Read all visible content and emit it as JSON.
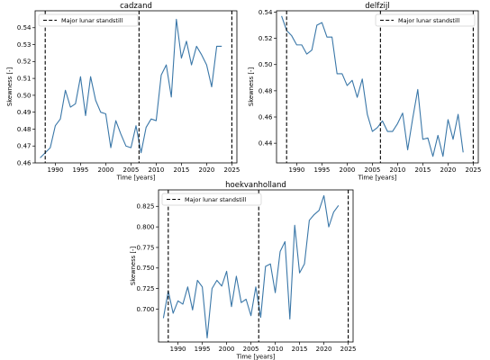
{
  "chart_data": [
    {
      "type": "line",
      "title": "cadzand",
      "xlabel": "Time [years]",
      "ylabel": "Skewness [-]",
      "xlim": [
        1986,
        2026
      ],
      "ylim": [
        0.46,
        0.55
      ],
      "xticks": [
        1990,
        1995,
        2000,
        2005,
        2010,
        2015,
        2020,
        2025
      ],
      "yticks": [
        0.46,
        0.47,
        0.48,
        0.49,
        0.5,
        0.51,
        0.52,
        0.53,
        0.54
      ],
      "ytick_labels": [
        "0.46",
        "0.47",
        "0.48",
        "0.49",
        "0.50",
        "0.51",
        "0.52",
        "0.53",
        "0.54"
      ],
      "vlines": [
        1988,
        2006.6,
        2025
      ],
      "legend": {
        "label": "Major lunar standstill",
        "position": "top-left"
      },
      "series": [
        {
          "x": [
            1987,
            1988,
            1989,
            1990,
            1991,
            1992,
            1993,
            1994,
            1995,
            1996,
            1997,
            1998,
            1999,
            2000,
            2001,
            2002,
            2003,
            2004,
            2005,
            2006,
            2007,
            2008,
            2009,
            2010,
            2011,
            2012,
            2013,
            2014,
            2015,
            2016,
            2017,
            2018,
            2019,
            2020,
            2021,
            2022,
            2023
          ],
          "y": [
            0.463,
            0.466,
            0.469,
            0.482,
            0.486,
            0.503,
            0.493,
            0.495,
            0.511,
            0.488,
            0.511,
            0.497,
            0.49,
            0.489,
            0.469,
            0.485,
            0.477,
            0.47,
            0.469,
            0.482,
            0.466,
            0.481,
            0.486,
            0.485,
            0.512,
            0.518,
            0.499,
            0.545,
            0.522,
            0.532,
            0.518,
            0.529,
            0.524,
            0.518,
            0.505,
            0.529,
            0.529
          ]
        }
      ]
    },
    {
      "type": "line",
      "title": "delfzijl",
      "xlabel": "Time [years]",
      "ylabel": "Skewness [-]",
      "xlim": [
        1986,
        2026
      ],
      "ylim": [
        0.425,
        0.541
      ],
      "xticks": [
        1990,
        1995,
        2000,
        2005,
        2010,
        2015,
        2020,
        2025
      ],
      "yticks": [
        0.44,
        0.46,
        0.48,
        0.5,
        0.52,
        0.54
      ],
      "ytick_labels": [
        "0.44",
        "0.46",
        "0.48",
        "0.50",
        "0.52",
        "0.54"
      ],
      "vlines": [
        1988,
        2006.6,
        2025
      ],
      "legend": {
        "label": "Major lunar standstill",
        "position": "top-right"
      },
      "series": [
        {
          "x": [
            1987,
            1988,
            1989,
            1990,
            1991,
            1992,
            1993,
            1994,
            1995,
            1996,
            1997,
            1998,
            1999,
            2000,
            2001,
            2002,
            2003,
            2004,
            2005,
            2006,
            2007,
            2008,
            2009,
            2010,
            2011,
            2012,
            2013,
            2014,
            2015,
            2016,
            2017,
            2018,
            2019,
            2020,
            2021,
            2022,
            2023
          ],
          "y": [
            0.537,
            0.526,
            0.522,
            0.515,
            0.515,
            0.508,
            0.511,
            0.53,
            0.532,
            0.521,
            0.521,
            0.493,
            0.493,
            0.484,
            0.488,
            0.475,
            0.489,
            0.462,
            0.449,
            0.452,
            0.457,
            0.449,
            0.449,
            0.455,
            0.463,
            0.435,
            0.459,
            0.481,
            0.443,
            0.444,
            0.43,
            0.446,
            0.43,
            0.458,
            0.443,
            0.462,
            0.433
          ]
        }
      ]
    },
    {
      "type": "line",
      "title": "hoekvanholland",
      "xlabel": "Time [years]",
      "ylabel": "Skewness [-]",
      "xlim": [
        1986,
        2026
      ],
      "ylim": [
        0.66,
        0.845
      ],
      "xticks": [
        1990,
        1995,
        2000,
        2005,
        2010,
        2015,
        2020,
        2025
      ],
      "yticks": [
        0.7,
        0.725,
        0.75,
        0.775,
        0.8,
        0.825
      ],
      "ytick_labels": [
        "0.700",
        "0.725",
        "0.750",
        "0.775",
        "0.800",
        "0.825"
      ],
      "vlines": [
        1988,
        2006.6,
        2025
      ],
      "legend": {
        "label": "Major lunar standstill",
        "position": "top-left"
      },
      "series": [
        {
          "x": [
            1987,
            1988,
            1989,
            1990,
            1991,
            1992,
            1993,
            1994,
            1995,
            1996,
            1997,
            1998,
            1999,
            2000,
            2001,
            2002,
            2003,
            2004,
            2005,
            2006,
            2007,
            2008,
            2009,
            2010,
            2011,
            2012,
            2013,
            2014,
            2015,
            2016,
            2017,
            2018,
            2019,
            2020,
            2021,
            2022,
            2023
          ],
          "y": [
            0.689,
            0.722,
            0.695,
            0.71,
            0.706,
            0.727,
            0.699,
            0.735,
            0.727,
            0.665,
            0.725,
            0.735,
            0.728,
            0.746,
            0.703,
            0.74,
            0.708,
            0.712,
            0.692,
            0.727,
            0.69,
            0.752,
            0.755,
            0.72,
            0.77,
            0.782,
            0.688,
            0.802,
            0.744,
            0.755,
            0.808,
            0.815,
            0.82,
            0.838,
            0.8,
            0.818,
            0.826
          ]
        }
      ]
    }
  ]
}
